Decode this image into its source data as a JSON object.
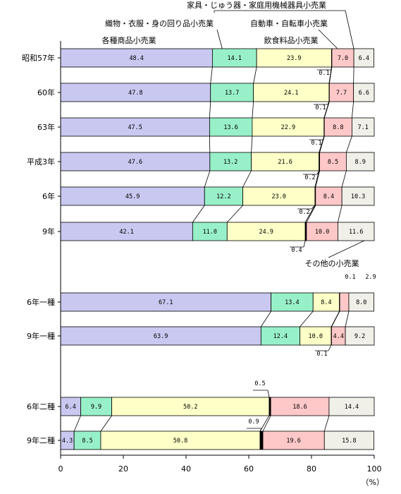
{
  "chart_data": {
    "type": "bar",
    "orientation": "horizontal",
    "stacked": true,
    "xlim": [
      0,
      100
    ],
    "x_ticks": [
      "0",
      "20",
      "40",
      "60",
      "80",
      "100"
    ],
    "x_unit": "（%）",
    "category_labels": {
      "各種": "各種商品小売業",
      "織物": "織物・衣服・身の回り品小売業",
      "飲食": "飲食料品小売業",
      "自動車": "自動車・自転車小売業",
      "家具": "家具・じゅう器・家庭用機械器具小売業",
      "その他": "その他の小売業"
    },
    "colors": [
      "#c8c8f0",
      "#98f0c8",
      "#ffffc8",
      "#000000",
      "#ffc8c8",
      "#f0f0e8"
    ],
    "rows": [
      {
        "label": "昭和57年",
        "values": [
          48.4,
          14.1,
          23.9,
          0.1,
          7.0,
          6.4
        ],
        "labels": [
          "48.4",
          "14.1",
          "23.9",
          "0.1",
          "7.0",
          "6.4"
        ]
      },
      {
        "label": "60年",
        "values": [
          47.8,
          13.7,
          24.1,
          0.1,
          7.7,
          6.6
        ],
        "labels": [
          "47.8",
          "13.7",
          "24.1",
          "0.1",
          "7.7",
          "6.6"
        ]
      },
      {
        "label": "63年",
        "values": [
          47.5,
          13.6,
          22.9,
          0.1,
          8.8,
          7.1
        ],
        "labels": [
          "47.5",
          "13.6",
          "22.9",
          "0.1",
          "8.8",
          "7.1"
        ]
      },
      {
        "label": "平成3年",
        "values": [
          47.6,
          13.2,
          21.6,
          0.2,
          8.5,
          8.9
        ],
        "labels": [
          "47.6",
          "13.2",
          "21.6",
          "0.2",
          "8.5",
          "8.9"
        ]
      },
      {
        "label": "6年",
        "values": [
          45.9,
          12.2,
          23.0,
          0.2,
          8.4,
          10.3
        ],
        "labels": [
          "45.9",
          "12.2",
          "23.0",
          "0.2",
          "8.4",
          "10.3"
        ]
      },
      {
        "label": "9年",
        "values": [
          42.1,
          11.0,
          24.9,
          0.4,
          10.0,
          11.6
        ],
        "labels": [
          "42.1",
          "11.0",
          "24.9",
          "0.4",
          "10.0",
          "11.6"
        ]
      },
      {
        "label": "6年一種",
        "values": [
          67.1,
          13.4,
          8.4,
          0.1,
          2.9,
          8.0
        ],
        "labels": [
          "67.1",
          "13.4",
          "8.4",
          "0.1",
          "2.9",
          "8.0"
        ]
      },
      {
        "label": "9年一種",
        "values": [
          63.9,
          12.4,
          10.0,
          0.1,
          4.4,
          9.2
        ],
        "labels": [
          "63.9",
          "12.4",
          "10.0",
          "0.1",
          "4.4",
          "9.2"
        ]
      },
      {
        "label": "6年二種",
        "values": [
          6.4,
          9.9,
          50.2,
          0.5,
          18.6,
          14.4
        ],
        "labels": [
          "6.4",
          "9.9",
          "50.2",
          "0.5",
          "18.6",
          "14.4"
        ]
      },
      {
        "label": "9年二種",
        "values": [
          4.3,
          8.5,
          50.8,
          0.9,
          19.6,
          15.8
        ],
        "labels": [
          "4.3",
          "8.5",
          "50.8",
          "0.9",
          "19.6",
          "15.8"
        ]
      }
    ]
  }
}
